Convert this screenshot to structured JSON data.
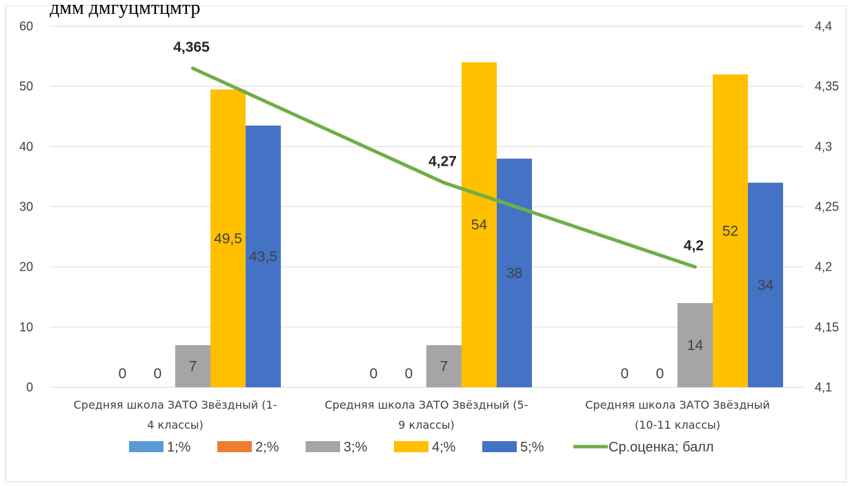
{
  "top_text": "дмм дмгуцмтцмтр",
  "chart_data": {
    "type": "bar",
    "categories": [
      [
        "Средняя школа ЗАТО Звёздный (1-",
        "4 классы)"
      ],
      [
        "Средняя школа ЗАТО Звёздный (5-",
        "9 классы)"
      ],
      [
        "Средняя школа ЗАТО Звёздный",
        "(10-11 классы)"
      ]
    ],
    "series": [
      {
        "name": "1;%",
        "color": "#5B9BD5",
        "values": [
          0,
          0,
          0
        ],
        "labels": [
          "0",
          "0",
          "0"
        ]
      },
      {
        "name": "2;%",
        "color": "#ED7D31",
        "values": [
          0,
          0,
          0
        ],
        "labels": [
          "0",
          "0",
          "0"
        ]
      },
      {
        "name": "3;%",
        "color": "#A5A5A5",
        "values": [
          7,
          7,
          14
        ],
        "labels": [
          "7",
          "7",
          "14"
        ]
      },
      {
        "name": "4;%",
        "color": "#FFC000",
        "values": [
          49.5,
          54,
          52
        ],
        "labels": [
          "49,5",
          "54",
          "52"
        ]
      },
      {
        "name": "5;%",
        "color": "#4472C4",
        "values": [
          43.5,
          38,
          34
        ],
        "labels": [
          "43,5",
          "38",
          "34"
        ]
      }
    ],
    "line_series": {
      "name": "Ср.оценка; балл",
      "color": "#70AD47",
      "values": [
        4.365,
        4.27,
        4.2
      ],
      "labels": [
        "4,365",
        "4,27",
        "4,2"
      ],
      "axis": "secondary"
    },
    "ylim": [
      0,
      60
    ],
    "yticks": [
      "0",
      "10",
      "20",
      "30",
      "40",
      "50",
      "60"
    ],
    "y2lim": [
      4.1,
      4.4
    ],
    "y2ticks": [
      "4,1",
      "4,15",
      "4,2",
      "4,25",
      "4,3",
      "4,35",
      "4,4"
    ],
    "grid": true,
    "legend": "bottom"
  }
}
